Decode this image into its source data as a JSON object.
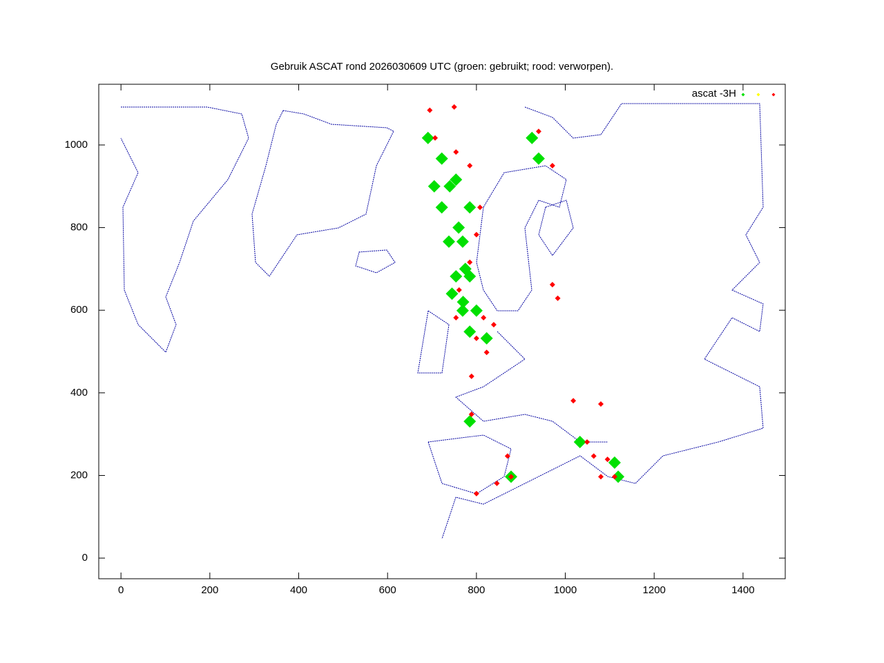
{
  "chart_data": {
    "type": "scatter",
    "title": "Gebruik ASCAT rond 2026030609 UTC (groen: gebruikt; rood: verworpen).",
    "xlim": [
      -50,
      1495
    ],
    "ylim": [
      -50,
      1147
    ],
    "xticks": [
      0,
      200,
      400,
      600,
      800,
      1000,
      1200,
      1400
    ],
    "yticks": [
      0,
      200,
      400,
      600,
      800,
      1000
    ],
    "legend": "top-right",
    "series": [
      {
        "name": "ascat -3H",
        "color": "#00e000",
        "x": [
          691,
          722,
          754,
          785,
          722,
          738,
          769,
          785,
          754,
          769,
          800,
          785,
          823,
          925,
          940,
          1033,
          1111,
          1119,
          878,
          785,
          705,
          740,
          760,
          775,
          745,
          770
        ],
        "values": [
          1017,
          967,
          916,
          849,
          849,
          766,
          766,
          682,
          682,
          599,
          599,
          548,
          532,
          1017,
          967,
          281,
          231,
          197,
          197,
          331,
          900,
          900,
          800,
          700,
          640,
          620
        ]
      },
      {
        "color": "#ffff00",
        "x": [],
        "values": []
      },
      {
        "color": "#ff0000",
        "x": [
          695,
          750,
          707,
          754,
          785,
          808,
          800,
          785,
          761,
          754,
          816,
          839,
          823,
          800,
          940,
          971,
          1018,
          1080,
          1049,
          1064,
          1095,
          1080,
          1111,
          800,
          846,
          878,
          870,
          971,
          983,
          789,
          789
        ],
        "values": [
          1084,
          1092,
          1017,
          983,
          950,
          849,
          783,
          716,
          649,
          582,
          582,
          565,
          498,
          532,
          1033,
          950,
          381,
          373,
          281,
          247,
          239,
          197,
          197,
          156,
          181,
          197,
          247,
          662,
          629,
          440,
          348
        ]
      }
    ]
  }
}
